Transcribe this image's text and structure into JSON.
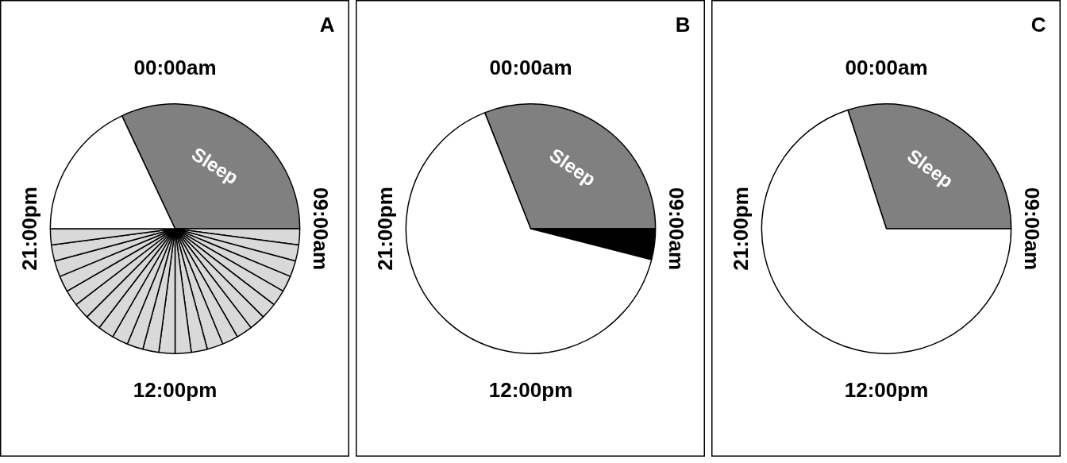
{
  "chart_data": [
    {
      "type": "pie",
      "title": "A",
      "annotations": [
        "00:00am",
        "09:00am",
        "12:00pm",
        "21:00pm"
      ],
      "categories": [
        "Sleep",
        null,
        null,
        null,
        null,
        null,
        null,
        null,
        null,
        null,
        null,
        null,
        null,
        null,
        null,
        null,
        null,
        null,
        null,
        null,
        null,
        null,
        null,
        null,
        null,
        null
      ],
      "values": [
        32,
        2.0833,
        2.0833,
        2.0833,
        2.0833,
        2.0833,
        2.0833,
        2.0833,
        2.0833,
        2.0833,
        2.0833,
        2.0833,
        2.0833,
        2.0833,
        2.0833,
        2.0833,
        2.0833,
        2.0833,
        2.0833,
        2.0833,
        2.0833,
        2.0833,
        2.0833,
        2.0833,
        2.0833,
        18
      ],
      "colors": [
        "#808080",
        "#d9d9d9",
        "#d9d9d9",
        "#d9d9d9",
        "#d9d9d9",
        "#d9d9d9",
        "#d9d9d9",
        "#d9d9d9",
        "#d9d9d9",
        "#d9d9d9",
        "#d9d9d9",
        "#d9d9d9",
        "#d9d9d9",
        "#d9d9d9",
        "#d9d9d9",
        "#d9d9d9",
        "#d9d9d9",
        "#d9d9d9",
        "#d9d9d9",
        "#d9d9d9",
        "#d9d9d9",
        "#d9d9d9",
        "#d9d9d9",
        "#d9d9d9",
        "#d9d9d9",
        "#ffffff"
      ]
    },
    {
      "type": "pie",
      "title": "B",
      "annotations": [
        "00:00am",
        "09:00am",
        "12:00pm",
        "21:00pm"
      ],
      "categories": [
        "Sleep",
        null,
        null
      ],
      "values": [
        31,
        4,
        65
      ],
      "colors": [
        "#808080",
        "#000000",
        "#ffffff"
      ]
    },
    {
      "type": "pie",
      "title": "C",
      "annotations": [
        "00:00am",
        "09:00am",
        "12:00pm",
        "21:00pm"
      ],
      "categories": [
        "Sleep",
        null
      ],
      "values": [
        30,
        70
      ],
      "colors": [
        "#808080",
        "#ffffff"
      ]
    }
  ]
}
